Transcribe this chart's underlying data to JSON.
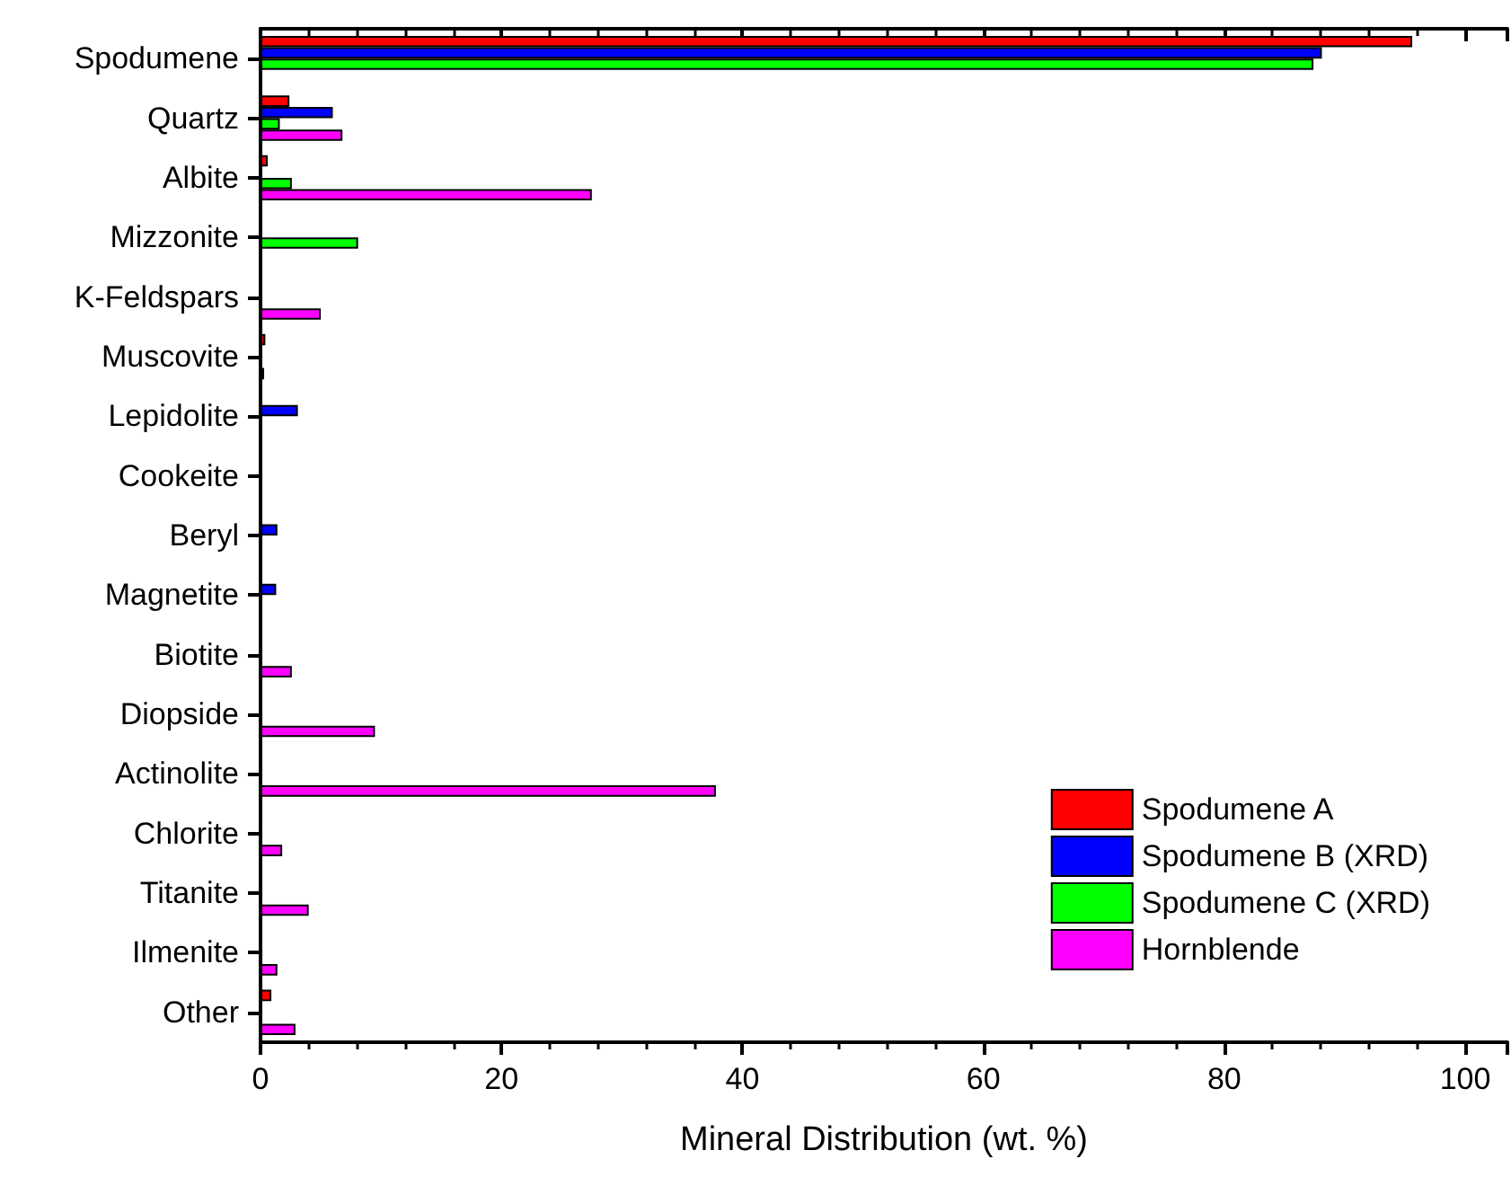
{
  "chart_data": {
    "type": "bar",
    "orientation": "horizontal",
    "xlabel": "Mineral Distribution (wt. %)",
    "categories": [
      "Spodumene",
      "Quartz",
      "Albite",
      "Mizzonite",
      "K-Feldspars",
      "Muscovite",
      "Lepidolite",
      "Cookeite",
      "Beryl",
      "Magnetite",
      "Biotite",
      "Diopside",
      "Actinolite",
      "Chlorite",
      "Titanite",
      "Ilmenite",
      "Other"
    ],
    "series": [
      {
        "name": "Spodumene A",
        "color": "#ff0000",
        "values": [
          95.6,
          2.4,
          0.6,
          null,
          null,
          0.4,
          null,
          null,
          null,
          null,
          null,
          null,
          null,
          null,
          null,
          null,
          0.9
        ]
      },
      {
        "name": "Spodumene B (XRD)",
        "color": "#0000ff",
        "values": [
          88.1,
          6.0,
          null,
          null,
          null,
          null,
          3.1,
          null,
          1.4,
          1.3,
          null,
          null,
          null,
          null,
          null,
          null,
          null
        ]
      },
      {
        "name": "Spodumene C (XRD)",
        "color": "#00ff00",
        "values": [
          87.4,
          1.6,
          2.6,
          8.1,
          null,
          null,
          null,
          null,
          null,
          null,
          null,
          null,
          null,
          null,
          null,
          null,
          null
        ]
      },
      {
        "name": "Hornblende",
        "color": "#ff00ff",
        "values": [
          null,
          6.8,
          27.5,
          null,
          5.0,
          0.3,
          null,
          null,
          null,
          null,
          2.6,
          9.5,
          37.8,
          1.8,
          4.0,
          1.4,
          2.9
        ]
      }
    ],
    "xlim": [
      0,
      103.5
    ],
    "xticks": [
      0,
      20,
      40,
      60,
      80,
      100
    ],
    "grid": false,
    "legend": "bottom right"
  }
}
